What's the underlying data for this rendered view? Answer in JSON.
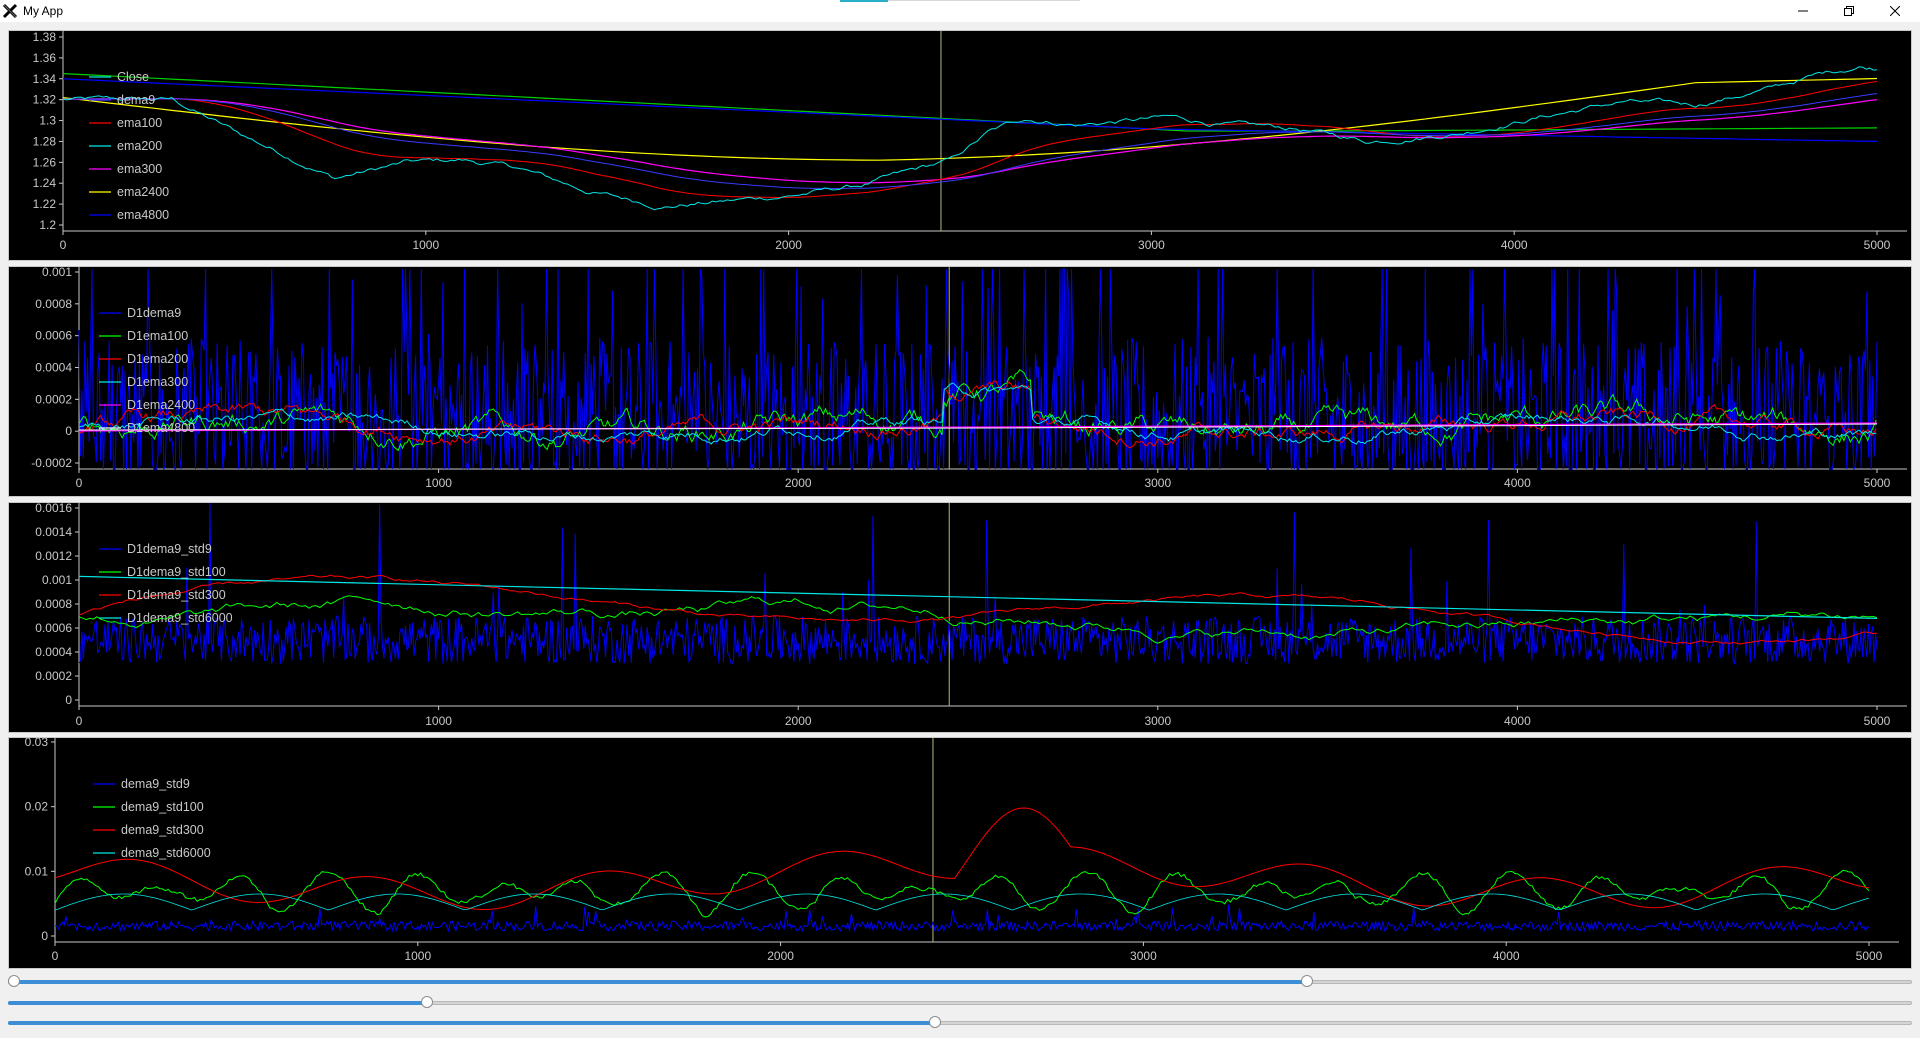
{
  "window": {
    "title": "My App",
    "buttons": {
      "minimize": "minimize-icon",
      "restore": "restore-icon",
      "close": "close-icon"
    }
  },
  "panels": [
    {
      "id": "price",
      "yticks": [
        "1.38",
        "1.36",
        "1.34",
        "1.32",
        "1.3",
        "1.28",
        "1.26",
        "1.24",
        "1.22",
        "1.2"
      ],
      "xticks": [
        "0",
        "1000",
        "2000",
        "3000",
        "4000",
        "5000"
      ],
      "legend": [
        {
          "label": "Close",
          "color": "#00e5e5"
        },
        {
          "label": "dema9",
          "color": "#3a3aff"
        },
        {
          "label": "ema100",
          "color": "#ff0000"
        },
        {
          "label": "ema200",
          "color": "#00e5e5"
        },
        {
          "label": "ema300",
          "color": "#ff00ff"
        },
        {
          "label": "ema2400",
          "color": "#ffff00"
        },
        {
          "label": "ema4800",
          "color": "#0000ff"
        }
      ]
    },
    {
      "id": "derivative",
      "yticks": [
        "0.001",
        "0.0008",
        "0.0006",
        "0.0004",
        "0.0002",
        "0",
        "-0.0002"
      ],
      "xticks": [
        "0",
        "1000",
        "2000",
        "3000",
        "4000",
        "5000"
      ],
      "legend": [
        {
          "label": "D1dema9",
          "color": "#0000ff"
        },
        {
          "label": "D1ema100",
          "color": "#00ff00"
        },
        {
          "label": "D1ema200",
          "color": "#ff0000"
        },
        {
          "label": "D1ema300",
          "color": "#00e5e5"
        },
        {
          "label": "D1ema2400",
          "color": "#ff00ff"
        },
        {
          "label": "D1ema4800",
          "color": "#ffffff"
        }
      ]
    },
    {
      "id": "d1std",
      "yticks": [
        "0.0016",
        "0.0014",
        "0.0012",
        "0.001",
        "0.0008",
        "0.0006",
        "0.0004",
        "0.0002",
        "0"
      ],
      "xticks": [
        "0",
        "1000",
        "2000",
        "3000",
        "4000",
        "5000"
      ],
      "legend": [
        {
          "label": "D1dema9_std9",
          "color": "#0000ff"
        },
        {
          "label": "D1dema9_std100",
          "color": "#00ff00"
        },
        {
          "label": "D1dema9_std300",
          "color": "#ff0000"
        },
        {
          "label": "D1dema9_std6000",
          "color": "#00e5e5"
        }
      ]
    },
    {
      "id": "std",
      "yticks": [
        "0.03",
        "0.02",
        "0.01",
        "0"
      ],
      "xticks": [
        "0",
        "1000",
        "2000",
        "3000",
        "4000",
        "5000"
      ],
      "legend": [
        {
          "label": "dema9_std9",
          "color": "#0000ff"
        },
        {
          "label": "dema9_std100",
          "color": "#00ff00"
        },
        {
          "label": "dema9_std300",
          "color": "#ff0000"
        },
        {
          "label": "dema9_std6000",
          "color": "#00e5e5"
        }
      ]
    }
  ],
  "cursor_x": 2420,
  "x_range": [
    0,
    5000
  ],
  "sliders": [
    {
      "range_start": 0.0,
      "range_end": 0.682
    },
    {
      "value": 0.22
    },
    {
      "value": 0.487
    }
  ]
}
